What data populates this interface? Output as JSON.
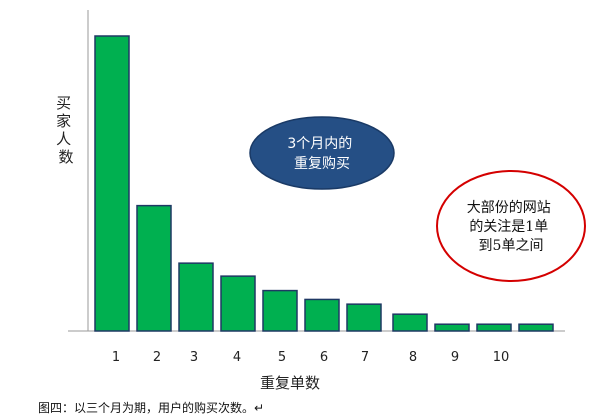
{
  "chart_data": {
    "type": "bar",
    "categories": [
      "1",
      "2",
      "3",
      "4",
      "5",
      "6",
      "7",
      "8",
      "9",
      "10",
      ""
    ],
    "values": [
      100,
      42.5,
      23,
      18.6,
      13.7,
      10.7,
      9.1,
      5.7,
      2.3,
      2.3,
      2.3
    ],
    "ylim": [
      0,
      104
    ],
    "ylabel": "买家人数",
    "xlabel": "重复单数",
    "bar_color": "#00b050",
    "bar_border_color": "#1f3864",
    "grid": false,
    "annotations": [
      {
        "name": "ellipse-note-left",
        "lines": [
          "3个月内的",
          "重复购买"
        ],
        "fill": "#254f85",
        "text_color": "#ffffff"
      },
      {
        "name": "ellipse-note-right",
        "lines": [
          "大部份的网站",
          "的关注是1单",
          "到5单之间"
        ],
        "fill": "#ffffff",
        "stroke": "#d40000",
        "text_color": "#111111"
      }
    ]
  },
  "caption": "图四：以三个月为期，用户的购买次数。↵"
}
